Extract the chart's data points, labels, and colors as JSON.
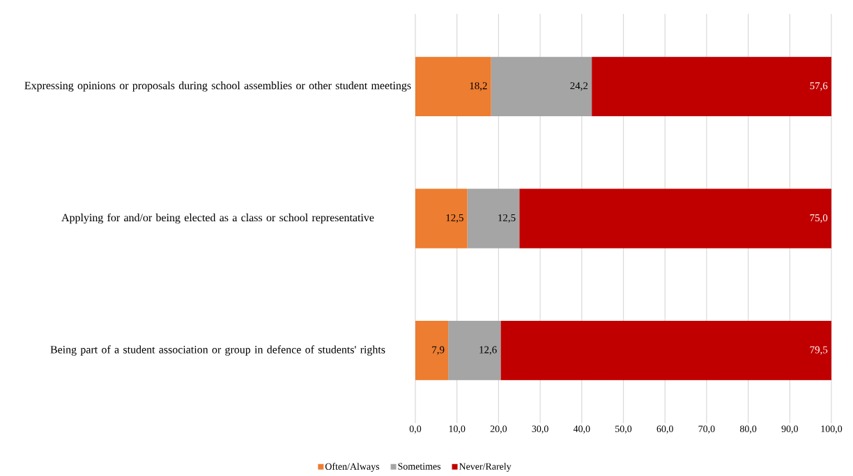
{
  "chart_data": {
    "type": "bar",
    "orientation": "horizontal",
    "stacked": true,
    "categories": [
      "Expressing opinions or proposals during school assemblies or other student meetings",
      "Applying for and/or being elected as a class or school representative",
      "Being part of a student association or group in defence of students' rights"
    ],
    "series": [
      {
        "name": "Often/Always",
        "color": "#ed7d31",
        "values": [
          18.2,
          12.5,
          7.9
        ],
        "value_labels": [
          "18,2",
          "12,5",
          "7,9"
        ]
      },
      {
        "name": "Sometimes",
        "color": "#a5a5a5",
        "values": [
          24.2,
          12.5,
          12.6
        ],
        "value_labels": [
          "24,2",
          "12,5",
          "12,6"
        ]
      },
      {
        "name": "Never/Rarely",
        "color": "#c00000",
        "values": [
          57.6,
          75.0,
          79.5
        ],
        "value_labels": [
          "57,6",
          "75,0",
          "79,5"
        ]
      }
    ],
    "xlim": [
      0,
      100
    ],
    "xticks": [
      {
        "value": 0,
        "label": "0,0"
      },
      {
        "value": 10,
        "label": "10,0"
      },
      {
        "value": 20,
        "label": "20,0"
      },
      {
        "value": 30,
        "label": "30,0"
      },
      {
        "value": 40,
        "label": "40,0"
      },
      {
        "value": 50,
        "label": "50,0"
      },
      {
        "value": 60,
        "label": "60,0"
      },
      {
        "value": 70,
        "label": "70,0"
      },
      {
        "value": 80,
        "label": "80,0"
      },
      {
        "value": 90,
        "label": "90,0"
      },
      {
        "value": 100,
        "label": "100,0"
      }
    ],
    "grid": "x",
    "legend": "bottom"
  }
}
